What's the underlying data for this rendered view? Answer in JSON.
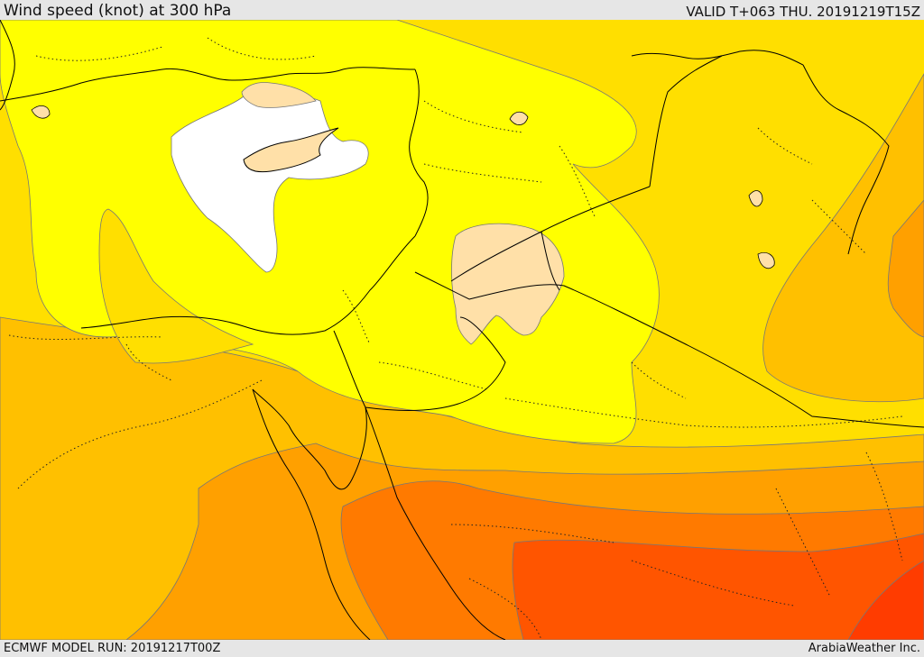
{
  "header": {
    "title": "Wind speed (knot) at 300 hPa",
    "valid": "VALID T+063 THU. 20191219T15Z"
  },
  "footer": {
    "model_run": "ECMWF MODEL RUN: 20191217T00Z",
    "credit": "ArabiaWeather Inc."
  },
  "colors": {
    "band_lightest": "#ffffff",
    "band_peach": "#ffe0a8",
    "band_yellow": "#ffff00",
    "band_gold": "#ffdf00",
    "band_amber": "#ffc000",
    "band_orange": "#ffa000",
    "band_deep_orange": "#ff7a00",
    "band_red_orange": "#ff5500",
    "band_red": "#ff3c00",
    "coastline": "#000000",
    "border": "#333333",
    "contour": "#777777"
  }
}
